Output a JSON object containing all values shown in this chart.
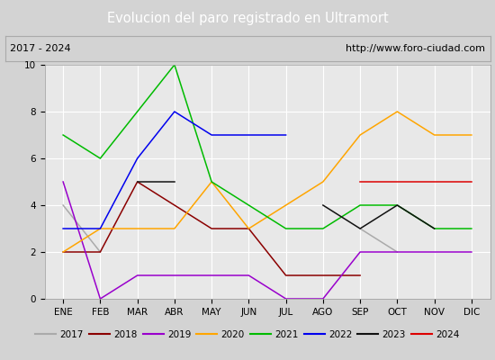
{
  "title": "Evolucion del paro registrado en Ultramort",
  "subtitle_left": "2017 - 2024",
  "subtitle_right": "http://www.foro-ciudad.com",
  "months": [
    "ENE",
    "FEB",
    "MAR",
    "ABR",
    "MAY",
    "JUN",
    "JUL",
    "AGO",
    "SEP",
    "OCT",
    "NOV",
    "DIC"
  ],
  "month_indices": [
    1,
    2,
    3,
    4,
    5,
    6,
    7,
    8,
    9,
    10,
    11,
    12
  ],
  "series": {
    "2017": {
      "color": "#aaaaaa",
      "data": [
        4,
        2,
        null,
        null,
        null,
        null,
        null,
        null,
        3,
        2,
        null,
        3
      ]
    },
    "2018": {
      "color": "#8b0000",
      "data": [
        2,
        2,
        5,
        4,
        3,
        3,
        1,
        1,
        1,
        null,
        null,
        null
      ]
    },
    "2019": {
      "color": "#9900cc",
      "data": [
        5,
        0,
        1,
        1,
        1,
        1,
        0,
        0,
        2,
        2,
        2,
        2
      ]
    },
    "2020": {
      "color": "#ffa500",
      "data": [
        2,
        3,
        3,
        3,
        5,
        3,
        4,
        5,
        7,
        8,
        7,
        7
      ]
    },
    "2021": {
      "color": "#00bb00",
      "data": [
        7,
        6,
        8,
        10,
        5,
        4,
        3,
        3,
        4,
        4,
        3,
        3
      ]
    },
    "2022": {
      "color": "#0000ee",
      "data": [
        3,
        3,
        6,
        8,
        7,
        7,
        7,
        null,
        null,
        null,
        null,
        null
      ]
    },
    "2023": {
      "color": "#111111",
      "data": [
        null,
        null,
        5,
        5,
        null,
        null,
        null,
        4,
        3,
        4,
        3,
        null
      ]
    },
    "2024": {
      "color": "#dd0000",
      "data": [
        null,
        null,
        null,
        null,
        null,
        null,
        null,
        null,
        5,
        5,
        5,
        5
      ]
    }
  },
  "ylim": [
    0,
    10
  ],
  "yticks": [
    0,
    2,
    4,
    6,
    8,
    10
  ],
  "title_bg_color": "#4a6fba",
  "title_fg_color": "#ffffff",
  "plot_bg_color": "#e8e8e8",
  "grid_color": "#ffffff",
  "legend_bg_color": "#e0e0e0",
  "subtitle_bg_color": "#d3d3d3",
  "subtitle_border_color": "#aaaaaa",
  "fig_bg_color": "#d3d3d3"
}
